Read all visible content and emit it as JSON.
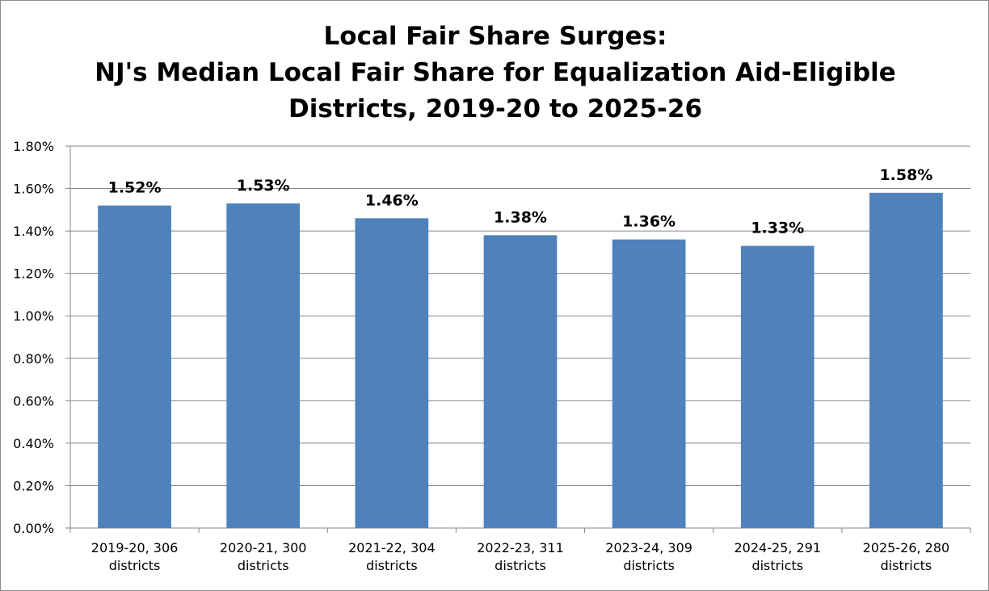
{
  "chart_data": {
    "type": "bar",
    "title": [
      "Local Fair Share Surges:",
      "NJ's Median Local Fair Share for Equalization Aid-Eligible",
      "Districts, 2019-20 to 2025-26"
    ],
    "categories": [
      [
        "2019-20, 306",
        "districts"
      ],
      [
        "2020-21, 300",
        "districts"
      ],
      [
        "2021-22, 304",
        "districts"
      ],
      [
        "2022-23, 311",
        "districts"
      ],
      [
        "2023-24, 309",
        "districts"
      ],
      [
        "2024-25, 291",
        "districts"
      ],
      [
        "2025-26, 280",
        "districts"
      ]
    ],
    "values": [
      1.52,
      1.53,
      1.46,
      1.38,
      1.36,
      1.33,
      1.58
    ],
    "data_labels": [
      "1.52%",
      "1.53%",
      "1.46%",
      "1.38%",
      "1.36%",
      "1.33%",
      "1.58%"
    ],
    "y_ticks": [
      0,
      0.2,
      0.4,
      0.6,
      0.8,
      1.0,
      1.2,
      1.4,
      1.6,
      1.8
    ],
    "y_tick_labels": [
      "0.00%",
      "0.20%",
      "0.40%",
      "0.60%",
      "0.80%",
      "1.00%",
      "1.20%",
      "1.40%",
      "1.60%",
      "1.80%"
    ],
    "ylim": [
      0,
      1.8
    ],
    "grid": true,
    "legend": "none",
    "bar_color": "#4f81bd",
    "grid_color": "#868686"
  }
}
